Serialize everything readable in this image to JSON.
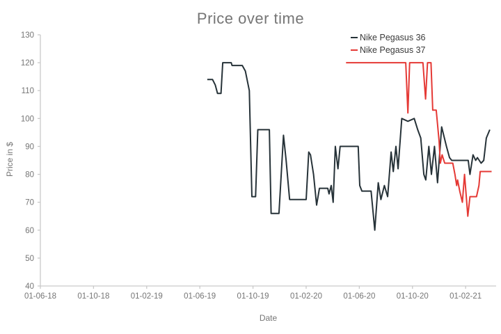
{
  "page": {
    "background": "#ffffff"
  },
  "chart_data": {
    "type": "line",
    "title": "Price over time",
    "xlabel": "Date",
    "ylabel": "Price in $",
    "ylim": [
      40,
      130
    ],
    "yticks": [
      40,
      50,
      60,
      70,
      80,
      90,
      100,
      110,
      120,
      130
    ],
    "xticks": [
      {
        "date": "2018-06-01",
        "label": "01-06-18"
      },
      {
        "date": "2018-10-01",
        "label": "01-10-18"
      },
      {
        "date": "2019-02-01",
        "label": "01-02-19"
      },
      {
        "date": "2019-06-01",
        "label": "01-06-19"
      },
      {
        "date": "2019-10-01",
        "label": "01-10-19"
      },
      {
        "date": "2020-02-01",
        "label": "01-02-20"
      },
      {
        "date": "2020-06-01",
        "label": "01-06-20"
      },
      {
        "date": "2020-10-01",
        "label": "01-10-20"
      },
      {
        "date": "2021-02-01",
        "label": "01-02-21"
      }
    ],
    "x_domain": [
      "2018-06-01",
      "2021-04-10"
    ],
    "grid": false,
    "legend_position": "top-right",
    "axis_color": "#c9c9c9",
    "tick_text_color": "#757575",
    "title_color": "#757575",
    "legend_text_color": "#3a3a3a",
    "series": [
      {
        "name": "Nike Pegasus 36",
        "color": "#263238",
        "points": [
          [
            "2019-06-18",
            114
          ],
          [
            "2019-06-30",
            114
          ],
          [
            "2019-07-06",
            112
          ],
          [
            "2019-07-11",
            109
          ],
          [
            "2019-07-19",
            109
          ],
          [
            "2019-07-23",
            120
          ],
          [
            "2019-08-12",
            120
          ],
          [
            "2019-08-14",
            119
          ],
          [
            "2019-09-07",
            119
          ],
          [
            "2019-09-14",
            117
          ],
          [
            "2019-09-23",
            110
          ],
          [
            "2019-09-29",
            72
          ],
          [
            "2019-10-07",
            72
          ],
          [
            "2019-10-12",
            96
          ],
          [
            "2019-11-08",
            96
          ],
          [
            "2019-11-12",
            66
          ],
          [
            "2019-11-30",
            66
          ],
          [
            "2019-12-10",
            94
          ],
          [
            "2019-12-16",
            85
          ],
          [
            "2019-12-24",
            71
          ],
          [
            "2020-02-01",
            71
          ],
          [
            "2020-02-07",
            88
          ],
          [
            "2020-02-11",
            87
          ],
          [
            "2020-02-18",
            80
          ],
          [
            "2020-02-25",
            69
          ],
          [
            "2020-03-01",
            75
          ],
          [
            "2020-03-20",
            75
          ],
          [
            "2020-03-23",
            73
          ],
          [
            "2020-03-28",
            76
          ],
          [
            "2020-04-02",
            70
          ],
          [
            "2020-04-07",
            90
          ],
          [
            "2020-04-13",
            82
          ],
          [
            "2020-04-18",
            90
          ],
          [
            "2020-05-29",
            90
          ],
          [
            "2020-06-02",
            76
          ],
          [
            "2020-06-07",
            74
          ],
          [
            "2020-06-28",
            74
          ],
          [
            "2020-07-06",
            60
          ],
          [
            "2020-07-14",
            77
          ],
          [
            "2020-07-20",
            71
          ],
          [
            "2020-07-28",
            76
          ],
          [
            "2020-08-05",
            72
          ],
          [
            "2020-08-13",
            88
          ],
          [
            "2020-08-18",
            81
          ],
          [
            "2020-08-24",
            90
          ],
          [
            "2020-08-29",
            82
          ],
          [
            "2020-09-07",
            100
          ],
          [
            "2020-09-21",
            99
          ],
          [
            "2020-10-05",
            100
          ],
          [
            "2020-10-13",
            96
          ],
          [
            "2020-10-20",
            93
          ],
          [
            "2020-10-27",
            80
          ],
          [
            "2020-11-01",
            78
          ],
          [
            "2020-11-08",
            90
          ],
          [
            "2020-11-14",
            80
          ],
          [
            "2020-11-21",
            90
          ],
          [
            "2020-11-28",
            77
          ],
          [
            "2020-12-07",
            97
          ],
          [
            "2020-12-18",
            90
          ],
          [
            "2020-12-25",
            86
          ],
          [
            "2020-12-30",
            85
          ],
          [
            "2021-02-07",
            85
          ],
          [
            "2021-02-11",
            80
          ],
          [
            "2021-02-18",
            87
          ],
          [
            "2021-02-24",
            85
          ],
          [
            "2021-02-28",
            86
          ],
          [
            "2021-03-06",
            84
          ],
          [
            "2021-03-12",
            85
          ],
          [
            "2021-03-18",
            93
          ],
          [
            "2021-03-26",
            96
          ]
        ]
      },
      {
        "name": "Nike Pegasus 37",
        "color": "#e53935",
        "points": [
          [
            "2020-05-01",
            120
          ],
          [
            "2020-09-16",
            120
          ],
          [
            "2020-09-21",
            102
          ],
          [
            "2020-09-25",
            120
          ],
          [
            "2020-10-25",
            120
          ],
          [
            "2020-10-31",
            107
          ],
          [
            "2020-11-05",
            120
          ],
          [
            "2020-11-13",
            120
          ],
          [
            "2020-11-17",
            103
          ],
          [
            "2020-11-25",
            103
          ],
          [
            "2020-12-01",
            92
          ],
          [
            "2020-12-04",
            84
          ],
          [
            "2020-12-08",
            87
          ],
          [
            "2020-12-14",
            84
          ],
          [
            "2021-01-02",
            84
          ],
          [
            "2021-01-07",
            80
          ],
          [
            "2021-01-11",
            76
          ],
          [
            "2021-01-13",
            78
          ],
          [
            "2021-01-18",
            74
          ],
          [
            "2021-01-24",
            70
          ],
          [
            "2021-01-29",
            80
          ],
          [
            "2021-02-06",
            65
          ],
          [
            "2021-02-11",
            72
          ],
          [
            "2021-02-26",
            72
          ],
          [
            "2021-03-01",
            76
          ],
          [
            "2021-03-04",
            81
          ],
          [
            "2021-03-30",
            81
          ]
        ]
      }
    ]
  }
}
